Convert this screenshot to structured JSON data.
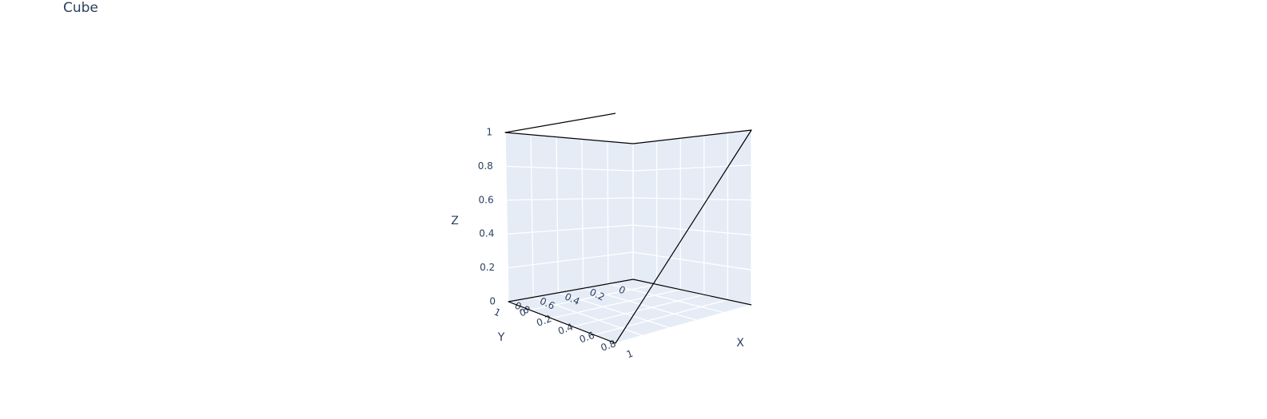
{
  "chart_data": {
    "type": "line3d",
    "title": "Cube",
    "xlabel": "X",
    "ylabel": "Y",
    "zlabel": "Z",
    "xlim": [
      0,
      1
    ],
    "ylim": [
      0,
      1
    ],
    "zlim": [
      0,
      1
    ],
    "xticks": [
      "0",
      "0.2",
      "0.4",
      "0.6",
      "0.8",
      "1"
    ],
    "yticks": [
      "0",
      "0.2",
      "0.4",
      "0.6",
      "0.8",
      "1"
    ],
    "zticks": [
      "0",
      "0.2",
      "0.4",
      "0.6",
      "0.8",
      "1"
    ],
    "grid": true,
    "series": [
      {
        "color": "#000000",
        "x": [
          1,
          0,
          0,
          1,
          1,
          0,
          0,
          1
        ],
        "y": [
          0,
          0,
          1,
          1,
          0,
          0,
          1,
          1
        ],
        "z": [
          0,
          0,
          0,
          0,
          1,
          1,
          1,
          1
        ]
      }
    ]
  },
  "colors": {
    "pane": "#e5ecf6",
    "grid": "#ffffff",
    "text": "#2a3f5f",
    "line": "#000000"
  }
}
